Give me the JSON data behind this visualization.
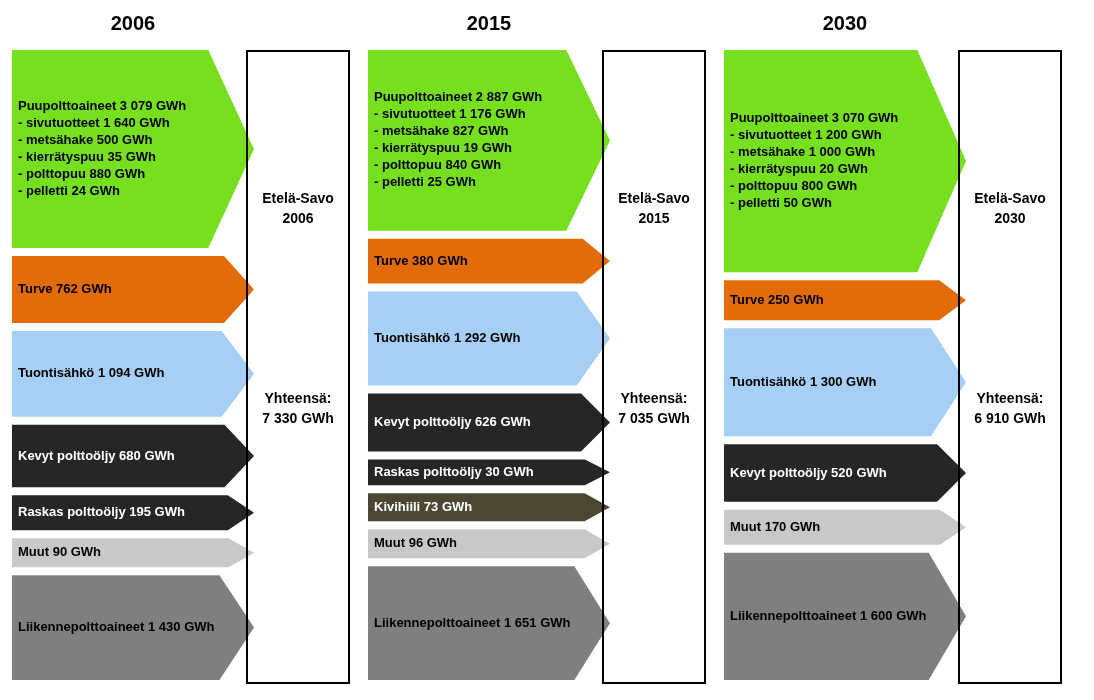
{
  "chart_data": [
    {
      "type": "other",
      "title": "2006",
      "series": [
        {
          "name": "Puupolttoaineet",
          "color": "#76e01f",
          "values": [
            3079
          ],
          "value_labels": [
            "3 079 GWh"
          ]
        },
        {
          "name": "Turve",
          "color": "#e36c09",
          "values": [
            762
          ],
          "value_labels": [
            "762 GWh"
          ]
        },
        {
          "name": "Tuontisähkö",
          "color": "#a6cff5",
          "values": [
            1094
          ],
          "value_labels": [
            "1 094 GWh"
          ]
        },
        {
          "name": "Kevyt polttoöljy",
          "color": "#262626",
          "values": [
            680
          ],
          "value_labels": [
            "680 GWh"
          ]
        },
        {
          "name": "Raskas polttoöljy",
          "color": "#262626",
          "values": [
            195
          ],
          "value_labels": [
            "195 GWh"
          ]
        },
        {
          "name": "Muut",
          "color": "#c8c8c8",
          "values": [
            90
          ],
          "value_labels": [
            "90 GWh"
          ]
        },
        {
          "name": "Liikennepolttoaineet",
          "color": "#7f7f7f",
          "values": [
            1430
          ],
          "value_labels": [
            "1 430 GWh"
          ]
        }
      ],
      "annotations": [
        "- sivutuotteet 1 640 GWh",
        "- metsähake 500 GWh",
        "- kierrätyspuu 35 GWh",
        "- polttopuu 880 GWh",
        "- pelletti 24 GWh",
        "Etelä-Savo 2006",
        "Yhteensä: 7 330 GWh"
      ]
    },
    {
      "type": "other",
      "title": "2015",
      "series": [
        {
          "name": "Puupolttoaineet",
          "color": "#76e01f",
          "values": [
            2887
          ],
          "value_labels": [
            "2 887 GWh"
          ]
        },
        {
          "name": "Turve",
          "color": "#e36c09",
          "values": [
            380
          ],
          "value_labels": [
            "380 GWh"
          ]
        },
        {
          "name": "Tuontisähkö",
          "color": "#a6cff5",
          "values": [
            1292
          ],
          "value_labels": [
            "1 292 GWh"
          ]
        },
        {
          "name": "Kevyt polttoöljy",
          "color": "#262626",
          "values": [
            626
          ],
          "value_labels": [
            "626 GWh"
          ]
        },
        {
          "name": "Raskas polttoöljy",
          "color": "#262626",
          "values": [
            30
          ],
          "value_labels": [
            "30 GWh"
          ]
        },
        {
          "name": "Kivihiili",
          "color": "#4d4632",
          "values": [
            73
          ],
          "value_labels": [
            "73 GWh"
          ]
        },
        {
          "name": "Muut",
          "color": "#c8c8c8",
          "values": [
            96
          ],
          "value_labels": [
            "96 GWh"
          ]
        },
        {
          "name": "Liikennepolttoaineet",
          "color": "#7f7f7f",
          "values": [
            1651
          ],
          "value_labels": [
            "1 651 GWh"
          ]
        }
      ],
      "annotations": [
        "- sivutuotteet 1 176 GWh",
        "- metsähake 827 GWh",
        "- kierrätyspuu 19 GWh",
        "- polttopuu 840 GWh",
        "- pelletti 25 GWh",
        "Etelä-Savo 2015",
        "Yhteensä: 7 035 GWh"
      ]
    },
    {
      "type": "other",
      "title": "2030",
      "series": [
        {
          "name": "Puupolttoaineet",
          "color": "#76e01f",
          "values": [
            3070
          ],
          "value_labels": [
            "3 070 GWh"
          ]
        },
        {
          "name": "Turve",
          "color": "#e36c09",
          "values": [
            250
          ],
          "value_labels": [
            "250 GWh"
          ]
        },
        {
          "name": "Tuontisähkö",
          "color": "#a6cff5",
          "values": [
            1300
          ],
          "value_labels": [
            "1 300 GWh"
          ]
        },
        {
          "name": "Kevyt polttoöljy",
          "color": "#262626",
          "values": [
            520
          ],
          "value_labels": [
            "520 GWh"
          ]
        },
        {
          "name": "Muut",
          "color": "#c8c8c8",
          "values": [
            170
          ],
          "value_labels": [
            "170 GWh"
          ]
        },
        {
          "name": "Liikennepolttoaineet",
          "color": "#7f7f7f",
          "values": [
            1600
          ],
          "value_labels": [
            "1 600 GWh"
          ]
        }
      ],
      "annotations": [
        "- sivutuotteet 1 200 GWh",
        "- metsähake 1 000 GWh",
        "- kierrätyspuu 20 GWh",
        "- polttopuu 800 GWh",
        "- pelletti 50 GWh",
        "Etelä-Savo 2030",
        "Yhteensä: 6 910 GWh"
      ]
    }
  ]
}
